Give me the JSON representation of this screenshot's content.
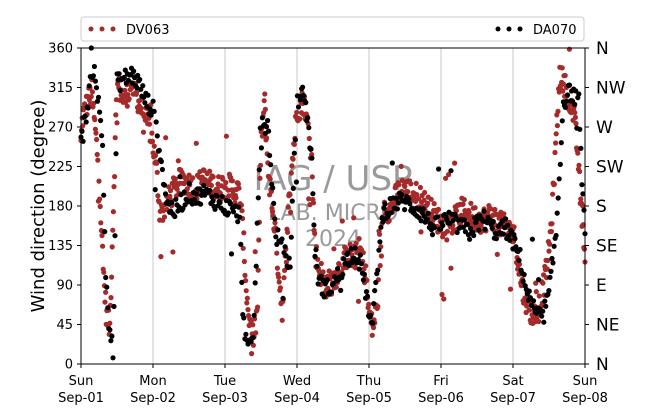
{
  "chart_data": {
    "type": "scatter",
    "ylabel": "Wind direction (degree)",
    "ylim": [
      0,
      360
    ],
    "yticks": [
      "0",
      "45",
      "90",
      "135",
      "180",
      "225",
      "270",
      "315",
      "360"
    ],
    "right_ticks": [
      "N",
      "NE",
      "E",
      "SE",
      "S",
      "SW",
      "W",
      "NW",
      "N"
    ],
    "xlim": [
      "2024-09-01",
      "2024-09-08"
    ],
    "x_ticks": [
      {
        "top": "Sun",
        "bottom": "Sep-01"
      },
      {
        "top": "Mon",
        "bottom": "Sep-02"
      },
      {
        "top": "Tue",
        "bottom": "Sep-03"
      },
      {
        "top": "Wed",
        "bottom": "Sep-04"
      },
      {
        "top": "Thu",
        "bottom": "Sep-05"
      },
      {
        "top": "Fri",
        "bottom": "Sep-06"
      },
      {
        "top": "Sat",
        "bottom": "Sep-07"
      },
      {
        "top": "Sun",
        "bottom": "Sep-08"
      }
    ],
    "grid": "vertical at day boundaries",
    "legend_placement": "top, above plot",
    "watermark": {
      "line1": "IAG / USP",
      "line2": "LAB. MICRO",
      "line3": "2024"
    },
    "series": [
      {
        "name": "DV063",
        "color": "#a52a2a",
        "profile_days": [
          0,
          0.02,
          0.1,
          0.15,
          0.25,
          0.3,
          0.35,
          0.4,
          0.5,
          0.6,
          0.65,
          0.7,
          0.75,
          0.8,
          0.85,
          0.9,
          0.95,
          1.0,
          1.05,
          1.1,
          1.2,
          1.3,
          1.4,
          1.5,
          1.6,
          1.7,
          1.8,
          1.9,
          2.0,
          2.1,
          2.2,
          2.25,
          2.3,
          2.35,
          2.4,
          2.45,
          2.5,
          2.55,
          2.6,
          2.7,
          2.75,
          2.8,
          2.9,
          3.0,
          3.1,
          3.2,
          3.25,
          3.3,
          3.35,
          3.4,
          3.5,
          3.6,
          3.7,
          3.8,
          3.85,
          3.9,
          3.95,
          4.0,
          4.05,
          4.1,
          4.15,
          4.2,
          4.3,
          4.35,
          4.4,
          4.5,
          4.6,
          4.7,
          4.8,
          4.9,
          5.0,
          5.1,
          5.2,
          5.3,
          5.4,
          5.5,
          5.6,
          5.7,
          5.8,
          5.9,
          6.0,
          6.05,
          6.1,
          6.15,
          6.2,
          6.25,
          6.3,
          6.35,
          6.4,
          6.45,
          6.5,
          6.55,
          6.6,
          6.65,
          6.7,
          6.75,
          6.8,
          6.85,
          6.9,
          6.95,
          7.0
        ],
        "profile_deg": [
          250,
          280,
          300,
          310,
          220,
          120,
          60,
          40,
          320,
          300,
          310,
          320,
          310,
          300,
          290,
          280,
          270,
          250,
          220,
          170,
          185,
          200,
          210,
          205,
          200,
          210,
          205,
          200,
          205,
          200,
          195,
          150,
          80,
          40,
          30,
          60,
          250,
          300,
          220,
          150,
          100,
          60,
          200,
          290,
          300,
          240,
          130,
          110,
          100,
          90,
          95,
          110,
          125,
          120,
          130,
          125,
          100,
          60,
          40,
          60,
          100,
          180,
          175,
          185,
          195,
          200,
          195,
          190,
          180,
          170,
          160,
          155,
          165,
          175,
          170,
          165,
          165,
          170,
          160,
          155,
          150,
          130,
          100,
          80,
          70,
          60,
          55,
          60,
          80,
          100,
          130,
          180,
          260,
          330,
          320,
          310,
          300,
          280,
          240,
          170,
          130
        ],
        "points_per_day": 120
      },
      {
        "name": "DA070",
        "color": "#000000",
        "profile_days": [
          0,
          0.1,
          0.15,
          0.2,
          0.3,
          0.35,
          0.4,
          0.45,
          0.5,
          0.6,
          0.7,
          0.8,
          0.9,
          1.0,
          1.1,
          1.2,
          1.3,
          1.4,
          1.5,
          1.6,
          1.7,
          1.8,
          1.9,
          2.0,
          2.1,
          2.2,
          2.25,
          2.3,
          2.35,
          2.4,
          2.5,
          2.6,
          2.7,
          2.8,
          2.9,
          3.0,
          3.1,
          3.2,
          3.25,
          3.3,
          3.4,
          3.5,
          3.6,
          3.7,
          3.8,
          3.9,
          4.0,
          4.05,
          4.1,
          4.2,
          4.3,
          4.4,
          4.5,
          4.6,
          4.7,
          4.8,
          4.9,
          5.0,
          5.1,
          5.2,
          5.3,
          5.4,
          5.5,
          5.6,
          5.7,
          5.8,
          5.9,
          6.0,
          6.1,
          6.2,
          6.3,
          6.4,
          6.5,
          6.6,
          6.7,
          6.8,
          6.9,
          7.0
        ],
        "profile_deg": [
          250,
          300,
          345,
          330,
          250,
          80,
          40,
          10,
          320,
          325,
          330,
          320,
          300,
          290,
          240,
          180,
          175,
          185,
          195,
          190,
          195,
          190,
          185,
          180,
          175,
          170,
          60,
          20,
          15,
          40,
          280,
          270,
          150,
          130,
          110,
          300,
          310,
          240,
          130,
          95,
          85,
          90,
          105,
          120,
          130,
          110,
          60,
          40,
          100,
          175,
          180,
          185,
          185,
          180,
          175,
          165,
          155,
          160,
          165,
          160,
          155,
          150,
          160,
          165,
          155,
          150,
          155,
          140,
          120,
          80,
          60,
          50,
          80,
          150,
          300,
          310,
          300,
          150
        ],
        "points_per_day": 70
      }
    ]
  }
}
